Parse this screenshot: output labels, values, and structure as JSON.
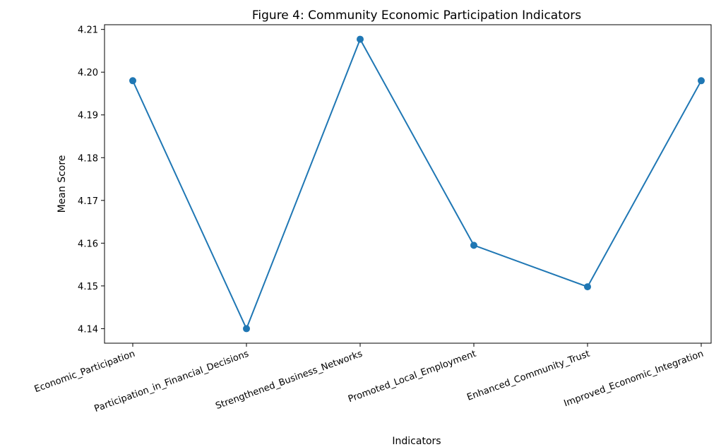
{
  "chart_data": {
    "type": "line",
    "title": "Figure 4: Community Economic Participation Indicators",
    "xlabel": "Indicators",
    "ylabel": "Mean Score",
    "categories": [
      "Economic_Participation",
      "Participation_in_Financial_Decisions",
      "Strengthened_Business_Networks",
      "Promoted_Local_Employment",
      "Enhanced_Community_Trust",
      "Improved_Economic_Integration"
    ],
    "series": [
      {
        "values": [
          4.198,
          4.14,
          4.2077,
          4.1595,
          4.1498,
          4.198
        ]
      }
    ],
    "yticks": [
      "4.14",
      "4.15",
      "4.16",
      "4.17",
      "4.18",
      "4.19",
      "4.20",
      "4.21"
    ],
    "ylim": [
      4.1366,
      4.2111
    ],
    "grid": false,
    "legend": "none",
    "colors": {
      "line": "#1f77b4",
      "axis": "#000000"
    }
  }
}
